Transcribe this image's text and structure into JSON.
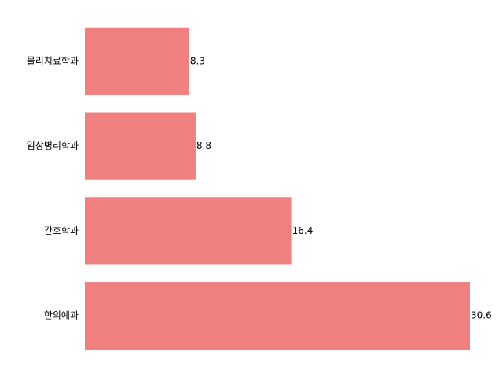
{
  "chart_data": {
    "type": "barh",
    "categories": [
      "물리치료학과",
      "임상병리학과",
      "간호학과",
      "한의예과"
    ],
    "values": [
      8.3,
      8.8,
      16.4,
      30.6
    ],
    "color": "#f08080",
    "xlim": [
      0,
      30.6
    ]
  }
}
